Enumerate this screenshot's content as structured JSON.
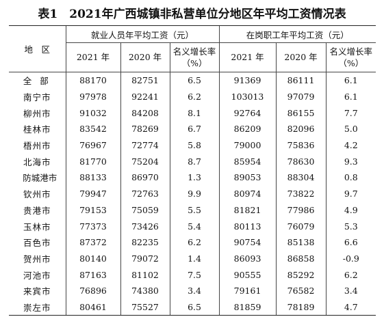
{
  "title": "表1　2021年广西城镇非私营单位分地区年平均工资情况表",
  "header": {
    "region": "地　区",
    "group1": "就业人员年平均工资（元）",
    "group2": "在岗职工年平均工资（元）",
    "year2021": "2021 年",
    "year2020": "2020 年",
    "growth_line1": "名义增长率",
    "growth_line2": "（%）"
  },
  "rows": [
    {
      "region": "全 部",
      "emp2021": "88170",
      "emp2020": "82751",
      "empGrowth": "6.5",
      "staff2021": "91369",
      "staff2020": "86111",
      "staffGrowth": "6.1"
    },
    {
      "region": "南宁市",
      "emp2021": "97978",
      "emp2020": "92241",
      "empGrowth": "6.2",
      "staff2021": "103013",
      "staff2020": "97079",
      "staffGrowth": "6.1"
    },
    {
      "region": "柳州市",
      "emp2021": "91032",
      "emp2020": "84208",
      "empGrowth": "8.1",
      "staff2021": "92764",
      "staff2020": "86155",
      "staffGrowth": "7.7"
    },
    {
      "region": "桂林市",
      "emp2021": "83542",
      "emp2020": "78269",
      "empGrowth": "6.7",
      "staff2021": "86209",
      "staff2020": "82096",
      "staffGrowth": "5.0"
    },
    {
      "region": "梧州市",
      "emp2021": "76967",
      "emp2020": "72774",
      "empGrowth": "5.8",
      "staff2021": "79000",
      "staff2020": "75836",
      "staffGrowth": "4.2"
    },
    {
      "region": "北海市",
      "emp2021": "81770",
      "emp2020": "75204",
      "empGrowth": "8.7",
      "staff2021": "85954",
      "staff2020": "78630",
      "staffGrowth": "9.3"
    },
    {
      "region": "防城港市",
      "emp2021": "88133",
      "emp2020": "86970",
      "empGrowth": "1.3",
      "staff2021": "89053",
      "staff2020": "88304",
      "staffGrowth": "0.8"
    },
    {
      "region": "钦州市",
      "emp2021": "79947",
      "emp2020": "72763",
      "empGrowth": "9.9",
      "staff2021": "80974",
      "staff2020": "73822",
      "staffGrowth": "9.7"
    },
    {
      "region": "贵港市",
      "emp2021": "79153",
      "emp2020": "75059",
      "empGrowth": "5.5",
      "staff2021": "81821",
      "staff2020": "77986",
      "staffGrowth": "4.9"
    },
    {
      "region": "玉林市",
      "emp2021": "77373",
      "emp2020": "73426",
      "empGrowth": "5.4",
      "staff2021": "80113",
      "staff2020": "76079",
      "staffGrowth": "5.3"
    },
    {
      "region": "百色市",
      "emp2021": "87372",
      "emp2020": "82235",
      "empGrowth": "6.2",
      "staff2021": "90754",
      "staff2020": "85138",
      "staffGrowth": "6.6"
    },
    {
      "region": "贺州市",
      "emp2021": "80140",
      "emp2020": "79072",
      "empGrowth": "1.4",
      "staff2021": "86093",
      "staff2020": "86858",
      "staffGrowth": "-0.9"
    },
    {
      "region": "河池市",
      "emp2021": "87163",
      "emp2020": "81102",
      "empGrowth": "7.5",
      "staff2021": "90555",
      "staff2020": "85292",
      "staffGrowth": "6.2"
    },
    {
      "region": "来宾市",
      "emp2021": "76896",
      "emp2020": "74380",
      "empGrowth": "3.4",
      "staff2021": "79161",
      "staff2020": "76582",
      "staffGrowth": "3.4"
    },
    {
      "region": "崇左市",
      "emp2021": "80461",
      "emp2020": "75527",
      "empGrowth": "6.5",
      "staff2021": "81859",
      "staff2020": "78189",
      "staffGrowth": "4.7"
    }
  ]
}
